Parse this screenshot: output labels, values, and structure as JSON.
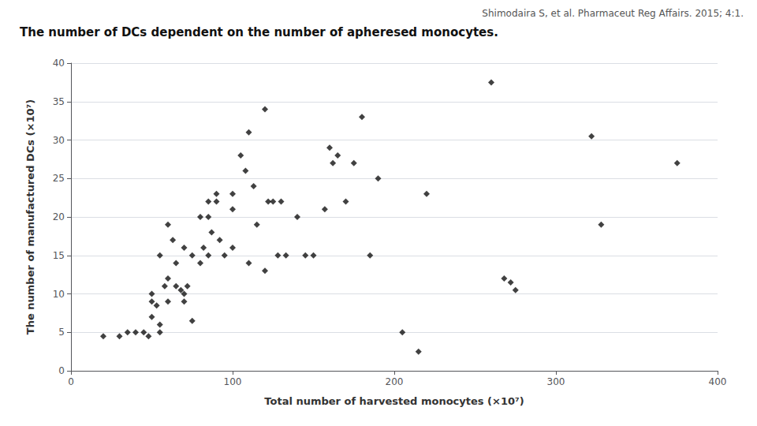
{
  "chart_data": {
    "type": "scatter",
    "title": "The number of DCs dependent on the number of apheresed monocytes.",
    "subtitle": "Shimodaira S, et al. Pharmaceut Reg Affairs. 2015; 4:1.",
    "xlabel": "Total number of harvested monocytes (×10⁷)",
    "ylabel": "The number of manufactured DCs (×10⁷)",
    "x": [
      20,
      30,
      35,
      40,
      45,
      48,
      50,
      50,
      50,
      53,
      55,
      55,
      55,
      58,
      60,
      60,
      60,
      63,
      65,
      65,
      68,
      70,
      70,
      70,
      72,
      75,
      75,
      80,
      80,
      82,
      85,
      85,
      85,
      87,
      90,
      90,
      92,
      95,
      100,
      100,
      100,
      105,
      108,
      110,
      110,
      113,
      115,
      120,
      120,
      122,
      125,
      128,
      130,
      133,
      140,
      145,
      150,
      157,
      160,
      162,
      165,
      170,
      175,
      180,
      185,
      190,
      205,
      215,
      220,
      260,
      268,
      272,
      275,
      322,
      328,
      375
    ],
    "values": [
      4.5,
      4.5,
      5.0,
      5.0,
      5.0,
      4.5,
      10.0,
      7.0,
      9.0,
      8.5,
      6.0,
      5.0,
      15.0,
      11.0,
      12.0,
      9.0,
      19.0,
      17.0,
      11.0,
      14.0,
      10.5,
      10.0,
      9.0,
      16.0,
      11.0,
      6.5,
      15.0,
      20.0,
      14.0,
      16.0,
      22.0,
      20.0,
      15.0,
      18.0,
      23.0,
      22.0,
      17.0,
      15.0,
      23.0,
      21.0,
      16.0,
      28.0,
      26.0,
      31.0,
      14.0,
      24.0,
      19.0,
      34.0,
      13.0,
      22.0,
      22.0,
      15.0,
      22.0,
      15.0,
      20.0,
      15.0,
      15.0,
      21.0,
      29.0,
      27.0,
      28.0,
      22.0,
      27.0,
      33.0,
      15.0,
      25.0,
      5.0,
      2.5,
      23.0,
      37.5,
      12.0,
      11.5,
      10.5,
      30.5,
      19.0,
      27.0
    ],
    "xlim": [
      0,
      400
    ],
    "ylim": [
      0,
      40
    ],
    "xticks": [
      0,
      100,
      200,
      300,
      400
    ],
    "yticks": [
      0,
      5,
      10,
      15,
      20,
      25,
      30,
      35,
      40
    ],
    "grid": true,
    "color": "#111111",
    "marker": "diamond"
  }
}
